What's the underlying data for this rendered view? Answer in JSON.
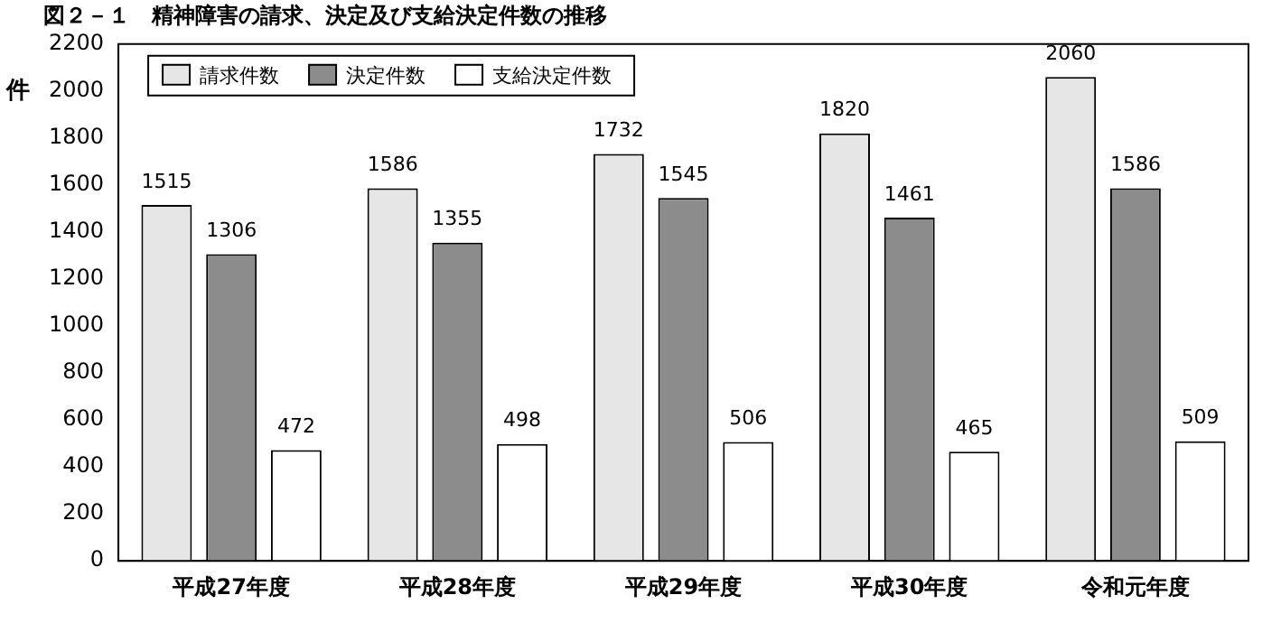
{
  "chart_data": {
    "type": "bar",
    "title": "図２－１　精神障害の請求、決定及び支給決定件数の推移",
    "ylabel": "件",
    "categories": [
      "平成27年度",
      "平成28年度",
      "平成29年度",
      "平成30年度",
      "令和元年度"
    ],
    "series": [
      {
        "name": "請求件数",
        "color": "#e6e6e6",
        "values": [
          1515,
          1586,
          1732,
          1820,
          2060
        ]
      },
      {
        "name": "決定件数",
        "color": "#8c8c8c",
        "values": [
          1306,
          1355,
          1545,
          1461,
          1586
        ]
      },
      {
        "name": "支給決定件数",
        "color": "#ffffff",
        "values": [
          472,
          498,
          506,
          465,
          509
        ]
      }
    ],
    "ylim": [
      0,
      2200
    ],
    "yticks": [
      0,
      200,
      400,
      600,
      800,
      1000,
      1200,
      1400,
      1600,
      1800,
      2000,
      2200
    ],
    "grid": false,
    "legend": "top left",
    "data_labels": true
  }
}
